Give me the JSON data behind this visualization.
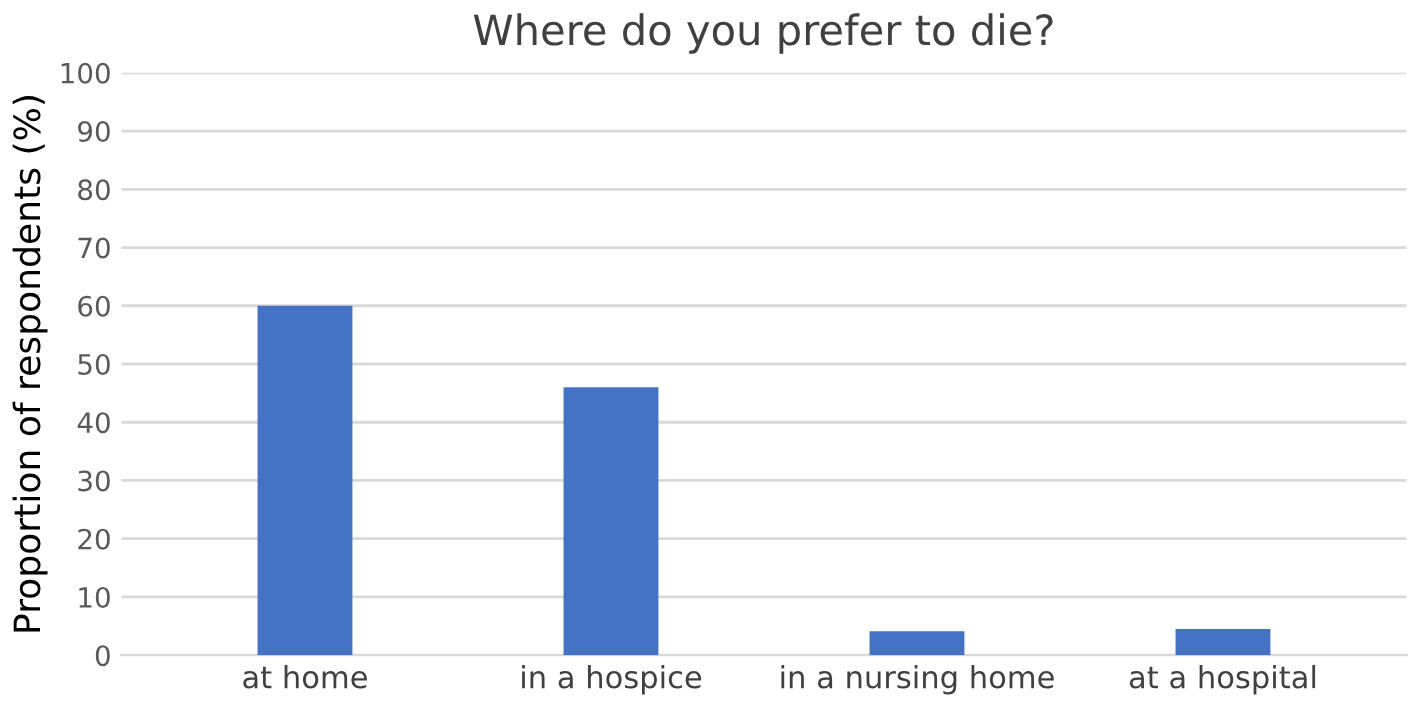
{
  "chart_data": {
    "type": "bar",
    "title": "Where do you prefer to die?",
    "ylabel": "Proportion of respondents (%)",
    "categories": [
      "at home",
      "in a hospice",
      "in a nursing home",
      "at a hospital"
    ],
    "values": [
      60,
      46,
      4.1,
      4.5
    ],
    "color": "#4472c4",
    "ylim": [
      0,
      100
    ],
    "yticks": [
      0,
      10,
      20,
      30,
      40,
      50,
      60,
      70,
      80,
      90,
      100
    ],
    "grid": "y"
  }
}
